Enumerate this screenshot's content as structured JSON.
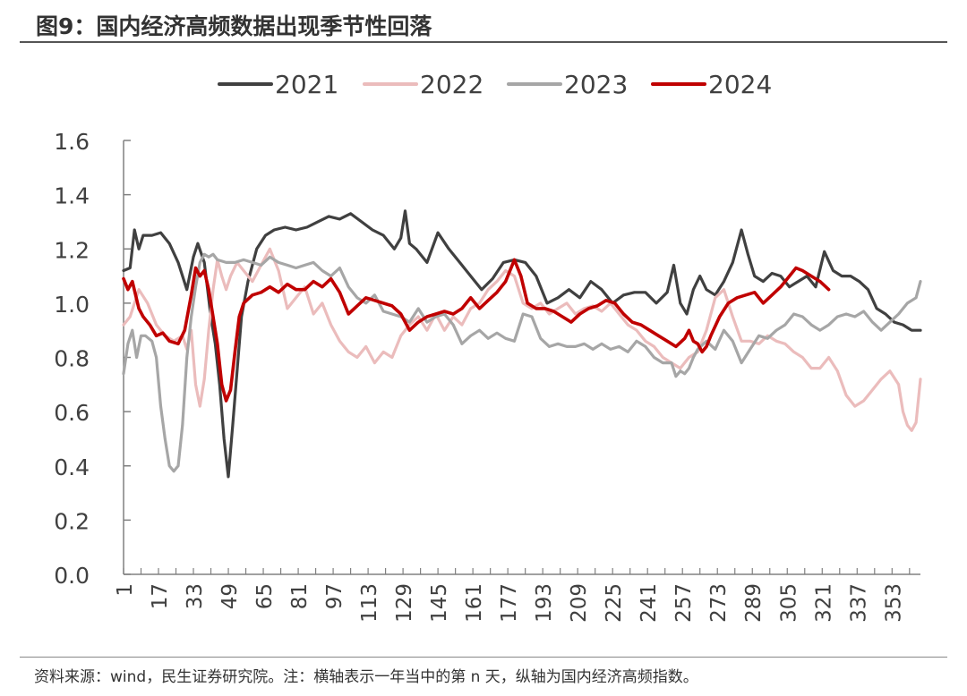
{
  "title": "图9：国内经济高频数据出现季节性回落",
  "source": "资料来源：wind，民生证券研究院。注：横轴表示一年当中的第 n 天，纵轴为国内经济高频指数。",
  "chart_data": {
    "type": "line",
    "title": "图9：国内经济高频数据出现季节性回落",
    "xlabel": "",
    "ylabel": "",
    "xlim": [
      1,
      366
    ],
    "ylim": [
      0.0,
      1.6
    ],
    "yticks": [
      "0.0",
      "0.2",
      "0.4",
      "0.6",
      "0.8",
      "1.0",
      "1.2",
      "1.4",
      "1.6"
    ],
    "xticks": [
      "1",
      "17",
      "33",
      "49",
      "65",
      "81",
      "97",
      "113",
      "129",
      "145",
      "161",
      "177",
      "193",
      "209",
      "225",
      "241",
      "257",
      "273",
      "289",
      "305",
      "321",
      "337",
      "353"
    ],
    "grid": false,
    "legend_position": "top",
    "series": [
      {
        "name": "2021",
        "color": "#404040",
        "width": 3.2,
        "x": [
          1,
          4,
          6,
          8,
          10,
          14,
          18,
          22,
          26,
          30,
          33,
          35,
          38,
          41,
          43,
          45,
          47,
          49,
          51,
          53,
          55,
          58,
          62,
          66,
          70,
          75,
          80,
          85,
          90,
          95,
          100,
          105,
          110,
          115,
          120,
          125,
          128,
          130,
          132,
          135,
          140,
          145,
          150,
          155,
          160,
          165,
          170,
          175,
          180,
          185,
          190,
          195,
          200,
          205,
          210,
          215,
          220,
          225,
          230,
          235,
          240,
          245,
          250,
          253,
          256,
          259,
          262,
          265,
          268,
          272,
          276,
          280,
          284,
          287,
          290,
          294,
          298,
          302,
          306,
          310,
          314,
          318,
          322,
          326,
          330,
          334,
          338,
          342,
          346,
          350,
          354,
          358,
          362,
          366
        ],
        "y": [
          1.12,
          1.13,
          1.27,
          1.2,
          1.25,
          1.25,
          1.26,
          1.22,
          1.15,
          1.05,
          1.17,
          1.22,
          1.15,
          0.95,
          0.85,
          0.7,
          0.5,
          0.36,
          0.55,
          0.75,
          0.95,
          1.08,
          1.2,
          1.25,
          1.27,
          1.28,
          1.27,
          1.28,
          1.3,
          1.32,
          1.31,
          1.33,
          1.3,
          1.27,
          1.25,
          1.2,
          1.24,
          1.34,
          1.22,
          1.2,
          1.15,
          1.26,
          1.2,
          1.15,
          1.1,
          1.05,
          1.09,
          1.15,
          1.16,
          1.15,
          1.1,
          1.0,
          1.02,
          1.05,
          1.02,
          1.08,
          1.05,
          1.0,
          1.03,
          1.04,
          1.04,
          1.0,
          1.04,
          1.14,
          1.0,
          0.96,
          1.05,
          1.1,
          1.05,
          1.03,
          1.08,
          1.15,
          1.27,
          1.18,
          1.1,
          1.08,
          1.11,
          1.1,
          1.06,
          1.08,
          1.1,
          1.06,
          1.19,
          1.12,
          1.1,
          1.1,
          1.08,
          1.05,
          0.98,
          0.96,
          0.93,
          0.92,
          0.9,
          0.9
        ]
      },
      {
        "name": "2022",
        "color": "#ebbcbc",
        "width": 3.2,
        "x": [
          1,
          4,
          8,
          12,
          16,
          20,
          24,
          28,
          30,
          32,
          34,
          36,
          38,
          40,
          42,
          44,
          46,
          48,
          50,
          53,
          56,
          60,
          64,
          68,
          72,
          76,
          80,
          84,
          88,
          92,
          96,
          100,
          104,
          108,
          112,
          116,
          120,
          124,
          128,
          132,
          136,
          140,
          144,
          148,
          152,
          156,
          160,
          164,
          168,
          172,
          176,
          180,
          184,
          188,
          192,
          196,
          200,
          204,
          208,
          212,
          216,
          220,
          224,
          228,
          232,
          236,
          240,
          244,
          248,
          252,
          256,
          260,
          264,
          268,
          272,
          276,
          280,
          284,
          288,
          292,
          296,
          300,
          304,
          308,
          312,
          316,
          320,
          324,
          328,
          332,
          336,
          340,
          344,
          348,
          352,
          356,
          358,
          360,
          362,
          364,
          366
        ],
        "y": [
          0.92,
          0.95,
          1.05,
          1.0,
          0.92,
          0.88,
          0.86,
          0.88,
          0.83,
          0.9,
          0.7,
          0.62,
          0.72,
          0.9,
          1.05,
          1.16,
          1.1,
          1.05,
          1.1,
          1.15,
          1.12,
          1.08,
          1.14,
          1.2,
          1.12,
          0.98,
          1.02,
          1.06,
          0.96,
          1.0,
          0.92,
          0.86,
          0.82,
          0.8,
          0.84,
          0.78,
          0.82,
          0.8,
          0.88,
          0.92,
          0.95,
          0.9,
          0.96,
          0.9,
          0.95,
          0.92,
          0.98,
          1.0,
          1.05,
          1.08,
          1.12,
          1.1,
          1.0,
          0.98,
          1.0,
          0.96,
          0.98,
          1.0,
          0.96,
          0.98,
          0.99,
          0.97,
          1.0,
          0.96,
          0.92,
          0.9,
          0.86,
          0.84,
          0.8,
          0.78,
          0.76,
          0.8,
          0.82,
          0.9,
          1.02,
          1.05,
          0.95,
          0.86,
          0.86,
          0.85,
          0.88,
          0.86,
          0.85,
          0.82,
          0.8,
          0.76,
          0.76,
          0.8,
          0.75,
          0.66,
          0.62,
          0.64,
          0.68,
          0.72,
          0.75,
          0.7,
          0.6,
          0.55,
          0.53,
          0.56,
          0.72
        ]
      },
      {
        "name": "2023",
        "color": "#a6a6a6",
        "width": 3.2,
        "x": [
          1,
          3,
          5,
          7,
          9,
          11,
          14,
          16,
          18,
          20,
          22,
          24,
          26,
          28,
          30,
          32,
          34,
          36,
          38,
          40,
          42,
          44,
          48,
          52,
          56,
          60,
          64,
          68,
          72,
          76,
          80,
          84,
          88,
          92,
          96,
          100,
          104,
          108,
          112,
          116,
          120,
          124,
          128,
          132,
          136,
          140,
          144,
          148,
          152,
          156,
          160,
          164,
          168,
          172,
          176,
          180,
          184,
          188,
          192,
          196,
          200,
          204,
          208,
          212,
          216,
          220,
          224,
          228,
          232,
          236,
          240,
          244,
          248,
          252,
          254,
          256,
          258,
          260,
          262,
          264,
          268,
          272,
          276,
          280,
          284,
          288,
          292,
          296,
          300,
          304,
          308,
          312,
          316,
          320,
          324,
          328,
          332,
          336,
          340,
          344,
          348,
          352,
          356,
          360,
          364,
          366
        ],
        "y": [
          0.74,
          0.85,
          0.9,
          0.8,
          0.88,
          0.88,
          0.86,
          0.8,
          0.62,
          0.5,
          0.4,
          0.38,
          0.4,
          0.55,
          0.8,
          0.95,
          1.06,
          1.15,
          1.18,
          1.17,
          1.18,
          1.16,
          1.15,
          1.15,
          1.16,
          1.15,
          1.14,
          1.17,
          1.15,
          1.14,
          1.13,
          1.14,
          1.15,
          1.12,
          1.1,
          1.13,
          1.06,
          1.02,
          1.0,
          1.03,
          0.97,
          0.96,
          0.95,
          0.93,
          0.98,
          0.93,
          0.95,
          0.96,
          0.92,
          0.85,
          0.88,
          0.9,
          0.87,
          0.89,
          0.87,
          0.86,
          0.96,
          0.95,
          0.87,
          0.84,
          0.85,
          0.84,
          0.84,
          0.85,
          0.83,
          0.85,
          0.83,
          0.84,
          0.82,
          0.86,
          0.84,
          0.8,
          0.78,
          0.78,
          0.73,
          0.75,
          0.74,
          0.76,
          0.8,
          0.83,
          0.86,
          0.83,
          0.9,
          0.86,
          0.78,
          0.83,
          0.88,
          0.87,
          0.9,
          0.92,
          0.96,
          0.95,
          0.92,
          0.9,
          0.92,
          0.95,
          0.96,
          0.95,
          0.97,
          0.93,
          0.9,
          0.93,
          0.96,
          1.0,
          1.02,
          1.08
        ]
      },
      {
        "name": "2024",
        "color": "#c00000",
        "width": 3.6,
        "x": [
          1,
          3,
          5,
          8,
          10,
          13,
          16,
          19,
          22,
          26,
          29,
          32,
          34,
          36,
          38,
          40,
          42,
          44,
          46,
          48,
          50,
          52,
          54,
          56,
          60,
          64,
          68,
          72,
          76,
          80,
          84,
          88,
          92,
          96,
          100,
          104,
          108,
          112,
          116,
          120,
          124,
          128,
          132,
          136,
          140,
          144,
          148,
          152,
          156,
          160,
          164,
          168,
          172,
          176,
          180,
          183,
          186,
          190,
          194,
          198,
          202,
          206,
          210,
          214,
          218,
          222,
          226,
          230,
          234,
          238,
          242,
          246,
          250,
          254,
          258,
          260,
          262,
          264,
          266,
          268,
          270,
          274,
          278,
          282,
          286,
          290,
          294,
          298,
          302,
          306,
          309,
          312,
          316,
          320,
          324
        ],
        "y": [
          1.09,
          1.05,
          1.08,
          0.98,
          0.95,
          0.92,
          0.88,
          0.89,
          0.86,
          0.85,
          0.9,
          1.03,
          1.13,
          1.1,
          1.12,
          1.05,
          0.95,
          0.85,
          0.7,
          0.64,
          0.68,
          0.82,
          0.95,
          1.0,
          1.03,
          1.04,
          1.06,
          1.04,
          1.07,
          1.05,
          1.05,
          1.08,
          1.06,
          1.09,
          1.04,
          0.96,
          0.99,
          1.02,
          1.01,
          1.0,
          0.99,
          0.96,
          0.9,
          0.93,
          0.95,
          0.96,
          0.97,
          0.96,
          0.98,
          1.02,
          0.98,
          1.01,
          1.04,
          1.08,
          1.16,
          1.1,
          1.0,
          0.98,
          0.98,
          0.97,
          0.95,
          0.93,
          0.96,
          0.98,
          0.99,
          1.01,
          1.0,
          0.96,
          0.93,
          0.92,
          0.9,
          0.88,
          0.86,
          0.84,
          0.87,
          0.9,
          0.86,
          0.85,
          0.82,
          0.84,
          0.88,
          0.95,
          1.0,
          1.02,
          1.03,
          1.04,
          1.0,
          1.03,
          1.06,
          1.1,
          1.13,
          1.12,
          1.1,
          1.08,
          1.05
        ]
      }
    ]
  }
}
